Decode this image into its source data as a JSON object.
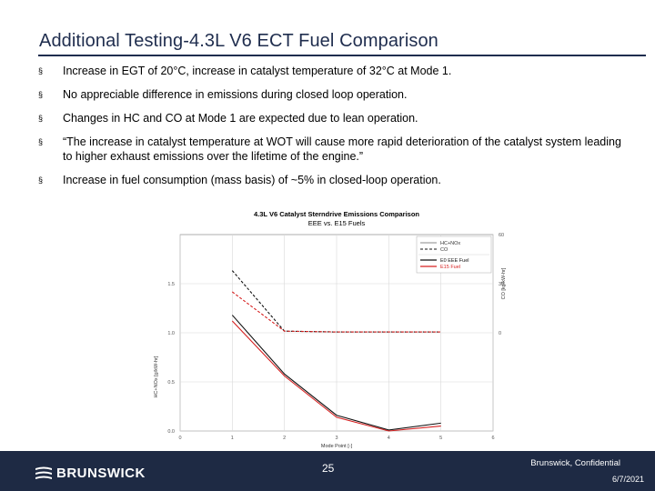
{
  "slide": {
    "title": "Additional Testing-4.3L V6 ECT Fuel Comparison",
    "bullet_marker": "§",
    "bullets": [
      "Increase in EGT of 20°C, increase in catalyst temperature of 32°C at Mode 1.",
      "No appreciable difference in emissions during closed loop operation.",
      "Changes in HC and CO at Mode 1 are expected due to lean operation.",
      "“The increase in catalyst temperature at WOT will cause more rapid deterioration of the catalyst system leading to higher exhaust emissions over the lifetime of the engine.”",
      "Increase in fuel consumption (mass basis) of ~5% in closed-loop operation."
    ]
  },
  "chart_data": {
    "type": "line",
    "title": "4.3L V6 Catalyst Sterndrive Emissions Comparison",
    "subtitle": "EEE vs. E15 Fuels",
    "xlabel": "Mode Point [-]",
    "ylabel_left": "HC+NOx [g/kW-hr]",
    "ylabel_right": "CO [kg/kW-hr]",
    "x_ticks": [
      "0",
      "1",
      "2",
      "3",
      "4",
      "5",
      "6"
    ],
    "y_ticks_left": [
      "0.0",
      "0.5",
      "1.0",
      "1.5"
    ],
    "y_ticks_right": [
      "0",
      "30",
      "60"
    ],
    "xlim": [
      0,
      6
    ],
    "ylim_left": [
      0,
      2.0
    ],
    "ylim_right": [
      -60,
      60
    ],
    "grid": true,
    "legend_position": "top-right",
    "legend": {
      "line_styles": [
        {
          "name": "HC+NOx",
          "style": "solid",
          "color": "#888888"
        },
        {
          "name": "CO",
          "style": "dashed",
          "color": "#111111"
        }
      ],
      "fuels": [
        {
          "name": "E0 EEE Fuel",
          "color": "#111111"
        },
        {
          "name": "E15 Fuel",
          "color": "#d62020"
        }
      ]
    },
    "series": [
      {
        "name": "HC+NOx E0 EEE Fuel",
        "axis": "left",
        "style": "solid",
        "color": "#111111",
        "x": [
          1,
          2,
          3,
          4,
          5
        ],
        "y": [
          1.18,
          0.58,
          0.16,
          0.01,
          0.08
        ]
      },
      {
        "name": "HC+NOx E15 Fuel",
        "axis": "left",
        "style": "solid",
        "color": "#d62020",
        "x": [
          1,
          2,
          3,
          4,
          5
        ],
        "y": [
          1.12,
          0.56,
          0.14,
          0.0,
          0.05
        ]
      },
      {
        "name": "CO E0 EEE Fuel",
        "axis": "right",
        "style": "dashed",
        "color": "#111111",
        "x": [
          1,
          2,
          3,
          4,
          5
        ],
        "y": [
          38,
          1,
          0.5,
          0.5,
          0.5
        ]
      },
      {
        "name": "CO E15 Fuel",
        "axis": "right",
        "style": "dashed",
        "color": "#d62020",
        "x": [
          1,
          2,
          3,
          4,
          5
        ],
        "y": [
          25,
          1,
          0.5,
          0.5,
          0.5
        ]
      }
    ]
  },
  "footer": {
    "logo_text": "BRUNSWICK",
    "page_number": "25",
    "confidential": "Brunswick, Confidential",
    "date": "6/7/2021",
    "background": "#1e2a44"
  }
}
